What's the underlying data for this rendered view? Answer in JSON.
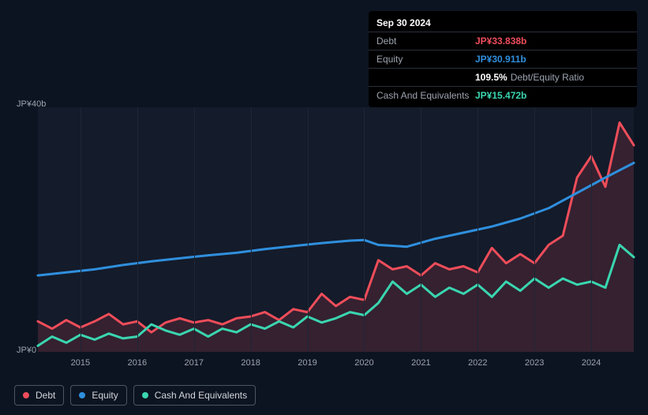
{
  "panel": {
    "date": "Sep 30 2024",
    "rows": [
      {
        "label": "Debt",
        "value": "JP¥33.838b",
        "color": "#ef4d5a"
      },
      {
        "label": "Equity",
        "value": "JP¥30.911b",
        "color": "#2f8fdd"
      },
      {
        "label": "",
        "value": "109.5%",
        "suffix": "Debt/Equity Ratio",
        "color": "#ffffff"
      },
      {
        "label": "Cash And Equivalents",
        "value": "JP¥15.472b",
        "color": "#3ad6b0"
      }
    ]
  },
  "chart": {
    "type": "line",
    "background_color": "#141b2a",
    "page_background": "#0d1421",
    "grid_color": "#1e2635",
    "axis_text_color": "#9ca3af",
    "axis_fontsize": 11,
    "xlim": [
      2014.25,
      2024.75
    ],
    "ylim": [
      0,
      40
    ],
    "y_unit_prefix": "JP¥",
    "y_unit_suffix": "b",
    "y_ticks": [
      0,
      40
    ],
    "x_ticks": [
      2015,
      2016,
      2017,
      2018,
      2019,
      2020,
      2021,
      2022,
      2023,
      2024
    ],
    "line_width": 3,
    "fill_opacity": 0.15,
    "series": [
      {
        "name": "Debt",
        "color": "#ef4d5a",
        "fill": true,
        "data": [
          [
            2014.25,
            5.0
          ],
          [
            2014.5,
            3.8
          ],
          [
            2014.75,
            5.2
          ],
          [
            2015.0,
            4.0
          ],
          [
            2015.25,
            5.0
          ],
          [
            2015.5,
            6.2
          ],
          [
            2015.75,
            4.5
          ],
          [
            2016.0,
            5.0
          ],
          [
            2016.25,
            3.2
          ],
          [
            2016.5,
            4.8
          ],
          [
            2016.75,
            5.5
          ],
          [
            2017.0,
            4.8
          ],
          [
            2017.25,
            5.2
          ],
          [
            2017.5,
            4.5
          ],
          [
            2017.75,
            5.5
          ],
          [
            2018.0,
            5.8
          ],
          [
            2018.25,
            6.5
          ],
          [
            2018.5,
            5.2
          ],
          [
            2018.75,
            7.0
          ],
          [
            2019.0,
            6.5
          ],
          [
            2019.25,
            9.5
          ],
          [
            2019.5,
            7.5
          ],
          [
            2019.75,
            9.0
          ],
          [
            2020.0,
            8.5
          ],
          [
            2020.25,
            15.0
          ],
          [
            2020.5,
            13.5
          ],
          [
            2020.75,
            14.0
          ],
          [
            2021.0,
            12.5
          ],
          [
            2021.25,
            14.5
          ],
          [
            2021.5,
            13.5
          ],
          [
            2021.75,
            14.0
          ],
          [
            2022.0,
            13.0
          ],
          [
            2022.25,
            17.0
          ],
          [
            2022.5,
            14.5
          ],
          [
            2022.75,
            16.0
          ],
          [
            2023.0,
            14.5
          ],
          [
            2023.25,
            17.5
          ],
          [
            2023.5,
            19.0
          ],
          [
            2023.75,
            28.5
          ],
          [
            2024.0,
            32.0
          ],
          [
            2024.25,
            27.0
          ],
          [
            2024.5,
            37.5
          ],
          [
            2024.75,
            33.8
          ]
        ]
      },
      {
        "name": "Equity",
        "color": "#2f8fdd",
        "fill": false,
        "data": [
          [
            2014.25,
            12.5
          ],
          [
            2014.75,
            13.0
          ],
          [
            2015.25,
            13.5
          ],
          [
            2015.75,
            14.2
          ],
          [
            2016.25,
            14.8
          ],
          [
            2016.75,
            15.3
          ],
          [
            2017.25,
            15.8
          ],
          [
            2017.75,
            16.2
          ],
          [
            2018.25,
            16.8
          ],
          [
            2018.75,
            17.3
          ],
          [
            2019.25,
            17.8
          ],
          [
            2019.75,
            18.2
          ],
          [
            2020.0,
            18.3
          ],
          [
            2020.25,
            17.5
          ],
          [
            2020.75,
            17.2
          ],
          [
            2021.25,
            18.5
          ],
          [
            2021.75,
            19.5
          ],
          [
            2022.25,
            20.5
          ],
          [
            2022.75,
            21.8
          ],
          [
            2023.25,
            23.5
          ],
          [
            2023.75,
            26.0
          ],
          [
            2024.25,
            28.5
          ],
          [
            2024.75,
            30.9
          ]
        ]
      },
      {
        "name": "Cash And Equivalents",
        "color": "#3ad6b0",
        "fill": false,
        "data": [
          [
            2014.25,
            1.0
          ],
          [
            2014.5,
            2.5
          ],
          [
            2014.75,
            1.5
          ],
          [
            2015.0,
            2.8
          ],
          [
            2015.25,
            2.0
          ],
          [
            2015.5,
            3.0
          ],
          [
            2015.75,
            2.2
          ],
          [
            2016.0,
            2.5
          ],
          [
            2016.25,
            4.5
          ],
          [
            2016.5,
            3.5
          ],
          [
            2016.75,
            2.8
          ],
          [
            2017.0,
            3.8
          ],
          [
            2017.25,
            2.5
          ],
          [
            2017.5,
            3.8
          ],
          [
            2017.75,
            3.2
          ],
          [
            2018.0,
            4.5
          ],
          [
            2018.25,
            3.8
          ],
          [
            2018.5,
            5.0
          ],
          [
            2018.75,
            4.0
          ],
          [
            2019.0,
            5.8
          ],
          [
            2019.25,
            4.8
          ],
          [
            2019.5,
            5.5
          ],
          [
            2019.75,
            6.5
          ],
          [
            2020.0,
            6.0
          ],
          [
            2020.25,
            8.0
          ],
          [
            2020.5,
            11.5
          ],
          [
            2020.75,
            9.5
          ],
          [
            2021.0,
            11.0
          ],
          [
            2021.25,
            9.0
          ],
          [
            2021.5,
            10.5
          ],
          [
            2021.75,
            9.5
          ],
          [
            2022.0,
            11.0
          ],
          [
            2022.25,
            9.0
          ],
          [
            2022.5,
            11.5
          ],
          [
            2022.75,
            10.0
          ],
          [
            2023.0,
            12.0
          ],
          [
            2023.25,
            10.5
          ],
          [
            2023.5,
            12.0
          ],
          [
            2023.75,
            11.0
          ],
          [
            2024.0,
            11.5
          ],
          [
            2024.25,
            10.5
          ],
          [
            2024.5,
            17.5
          ],
          [
            2024.75,
            15.5
          ]
        ]
      }
    ]
  },
  "legend": {
    "items": [
      {
        "label": "Debt",
        "color": "#ef4d5a"
      },
      {
        "label": "Equity",
        "color": "#2f8fdd"
      },
      {
        "label": "Cash And Equivalents",
        "color": "#3ad6b0"
      }
    ],
    "border_color": "#4b5563",
    "text_color": "#d1d5db",
    "fontsize": 12
  }
}
